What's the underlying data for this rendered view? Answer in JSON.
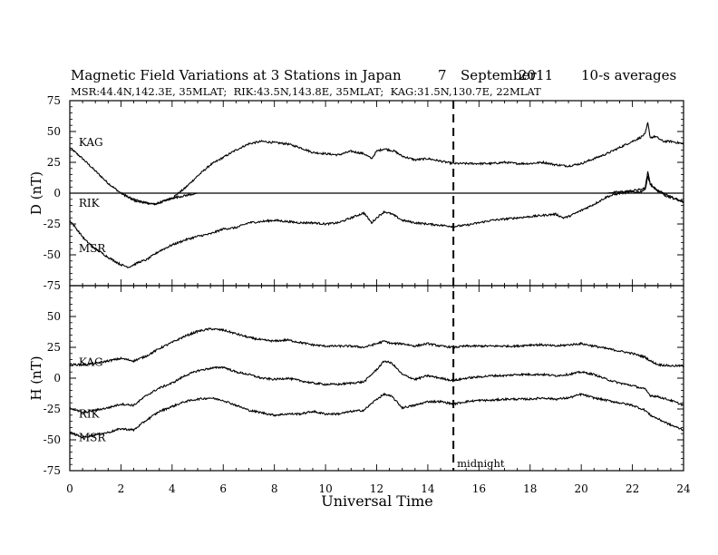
{
  "chart_data": {
    "type": "line",
    "title_parts": {
      "main": "Magnetic Field Variations at 3 Stations in Japan",
      "day": "7",
      "month": "September",
      "year": "2011",
      "averaging": "10-s averages"
    },
    "subtitle": "MSR:44.4N,142.3E, 35MLAT;  RIK:43.5N,143.8E, 35MLAT;  KAG:31.5N,130.7E, 22MLAT",
    "xlabel": "Universal Time",
    "xlim": [
      0,
      24
    ],
    "xticks": [
      0,
      2,
      4,
      6,
      8,
      10,
      12,
      14,
      16,
      18,
      20,
      22,
      24
    ],
    "midnight_marker": {
      "x": 15,
      "label": "midnight"
    },
    "panels": [
      {
        "ylabel": "D (nT)",
        "ylim": [
          -75,
          75
        ],
        "yticks": [
          -75,
          -50,
          -25,
          0,
          25,
          50,
          75
        ],
        "zero_line": true,
        "series": [
          {
            "name": "KAG",
            "label_at": [
              0.35,
              41
            ],
            "x": [
              0,
              0.5,
              1,
              1.5,
              2,
              2.5,
              3,
              3.3,
              3.5,
              4,
              4.5,
              5,
              5.5,
              6,
              6.5,
              7,
              7.5,
              8,
              8.5,
              9,
              9.5,
              10,
              10.5,
              11,
              11.5,
              11.8,
              12,
              12.3,
              12.7,
              13,
              13.5,
              14,
              14.5,
              15,
              15.5,
              16,
              16.5,
              17,
              17.5,
              18,
              18.5,
              19,
              19.5,
              20,
              20.5,
              21,
              21.5,
              22,
              22.3,
              22.5,
              22.6,
              22.7,
              22.9,
              23.2,
              23.5,
              24
            ],
            "y": [
              37,
              28,
              18,
              8,
              0,
              -6,
              -8,
              -9,
              -8,
              -4,
              4,
              14,
              23,
              29,
              35,
              40,
              42,
              41,
              40,
              37,
              33,
              32,
              31,
              34,
              32,
              28,
              34,
              36,
              34,
              30,
              27,
              28,
              26,
              24,
              24,
              24,
              24,
              25,
              24,
              24,
              25,
              23,
              22,
              24,
              28,
              32,
              37,
              42,
              45,
              48,
              57,
              45,
              46,
              42,
              42,
              40
            ]
          },
          {
            "name": "RIK",
            "label_at": [
              0.35,
              -8
            ],
            "x": [
              0,
              0.5,
              1,
              1.5,
              2,
              2.5,
              3,
              3.3,
              4,
              5,
              6,
              7,
              8,
              9,
              10,
              11,
              12,
              13,
              14,
              15,
              16,
              17,
              18,
              19,
              20,
              20.5,
              21,
              21.5,
              22,
              22.3,
              22.5,
              22.6,
              22.7,
              22.9,
              23.3,
              23.7,
              24
            ],
            "y": [
              0,
              0,
              0,
              0,
              0,
              -5,
              -8,
              -9,
              -4,
              0,
              0,
              0,
              0,
              0,
              0,
              0,
              0,
              0,
              0,
              0,
              0,
              0,
              0,
              0,
              0,
              0,
              0,
              1,
              2,
              3,
              4,
              17,
              8,
              3,
              -2,
              -5,
              -7
            ]
          },
          {
            "name": "MSR",
            "label_at": [
              0.35,
              -45
            ],
            "x": [
              0,
              0.3,
              0.6,
              1,
              1.5,
              2,
              2.3,
              2.7,
              3,
              3.5,
              4,
              4.5,
              5,
              5.5,
              6,
              6.5,
              7,
              7.5,
              8,
              8.5,
              9,
              9.5,
              10,
              10.5,
              11,
              11.5,
              11.8,
              12,
              12.3,
              12.6,
              13,
              13.5,
              14,
              14.5,
              15,
              15.5,
              16,
              16.5,
              17,
              17.5,
              18,
              18.5,
              19,
              19.3,
              19.5,
              20,
              20.5,
              21,
              21.5,
              22,
              22.3,
              22.5,
              22.6,
              22.7,
              23,
              23.5,
              24
            ],
            "y": [
              -22,
              -30,
              -38,
              -45,
              -52,
              -58,
              -60,
              -56,
              -54,
              -47,
              -42,
              -38,
              -35,
              -33,
              -29,
              -28,
              -24,
              -23,
              -22,
              -23,
              -24,
              -24,
              -25,
              -24,
              -20,
              -16,
              -24,
              -20,
              -15,
              -17,
              -22,
              -24,
              -25,
              -26,
              -27,
              -26,
              -24,
              -22,
              -21,
              -20,
              -19,
              -18,
              -17,
              -20,
              -19,
              -14,
              -9,
              -3,
              0,
              1,
              1,
              3,
              14,
              7,
              2,
              -3,
              -7
            ]
          }
        ]
      },
      {
        "ylabel": "H (nT)",
        "ylim": [
          -75,
          75
        ],
        "yticks": [
          -75,
          -50,
          -25,
          0,
          25,
          50,
          75
        ],
        "zero_line": false,
        "series": [
          {
            "name": "KAG",
            "label_at": [
              0.35,
              13
            ],
            "x": [
              0,
              0.5,
              1,
              1.5,
              2,
              2.5,
              3,
              3.5,
              4,
              4.5,
              5,
              5.5,
              6,
              6.5,
              7,
              7.5,
              8,
              8.5,
              9,
              9.5,
              10,
              10.5,
              11,
              11.5,
              12,
              12.3,
              12.6,
              13,
              13.5,
              14,
              14.5,
              15,
              15.5,
              16,
              16.5,
              17,
              17.5,
              18,
              18.5,
              19,
              19.5,
              20,
              20.5,
              21,
              21.5,
              22,
              22.5,
              22.7,
              23,
              23.5,
              24
            ],
            "y": [
              11,
              11,
              12,
              14,
              16,
              14,
              18,
              24,
              29,
              34,
              38,
              40,
              39,
              36,
              33,
              31,
              30,
              31,
              29,
              27,
              26,
              26,
              26,
              25,
              28,
              30,
              28,
              28,
              26,
              28,
              26,
              25,
              26,
              26,
              26,
              26,
              26,
              27,
              27,
              26,
              27,
              28,
              26,
              24,
              22,
              20,
              17,
              14,
              11,
              10,
              10
            ]
          },
          {
            "name": "RIK",
            "label_at": [
              0.35,
              -29
            ],
            "x": [
              0,
              0.5,
              1,
              1.5,
              2,
              2.5,
              3,
              3.5,
              4,
              4.5,
              5,
              5.5,
              6,
              6.5,
              7,
              7.5,
              8,
              8.5,
              9,
              9.5,
              10,
              10.5,
              11,
              11.5,
              12,
              12.3,
              12.6,
              13,
              13.5,
              14,
              14.5,
              15,
              15.5,
              16,
              16.5,
              17,
              17.5,
              18,
              18.5,
              19,
              19.5,
              20,
              20.5,
              21,
              21.5,
              22,
              22.5,
              22.7,
              23,
              23.5,
              24
            ],
            "y": [
              -24,
              -28,
              -26,
              -24,
              -21,
              -22,
              -14,
              -8,
              -4,
              2,
              6,
              8,
              9,
              5,
              3,
              0,
              -1,
              0,
              -2,
              -4,
              -5,
              -5,
              -4,
              -3,
              7,
              14,
              12,
              3,
              -1,
              2,
              0,
              -2,
              0,
              1,
              2,
              2,
              3,
              3,
              3,
              2,
              3,
              5,
              3,
              -1,
              -4,
              -6,
              -9,
              -14,
              -15,
              -18,
              -22
            ]
          },
          {
            "name": "MSR",
            "label_at": [
              0.35,
              -48
            ],
            "x": [
              0,
              0.5,
              1,
              1.5,
              2,
              2.5,
              3,
              3.5,
              4,
              4.5,
              5,
              5.5,
              6,
              6.5,
              7,
              7.5,
              8,
              8.5,
              9,
              9.5,
              10,
              10.5,
              11,
              11.5,
              12,
              12.3,
              12.6,
              13,
              13.5,
              14,
              14.5,
              15,
              15.5,
              16,
              16.5,
              17,
              17.5,
              18,
              18.5,
              19,
              19.5,
              20,
              20.5,
              21,
              21.5,
              22,
              22.5,
              22.7,
              23,
              23.5,
              24
            ],
            "y": [
              -44,
              -48,
              -46,
              -44,
              -41,
              -42,
              -34,
              -27,
              -23,
              -19,
              -17,
              -16,
              -18,
              -22,
              -26,
              -28,
              -30,
              -29,
              -29,
              -27,
              -29,
              -29,
              -27,
              -26,
              -17,
              -13,
              -15,
              -24,
              -22,
              -19,
              -19,
              -21,
              -19,
              -18,
              -18,
              -17,
              -17,
              -17,
              -16,
              -17,
              -16,
              -13,
              -16,
              -18,
              -20,
              -22,
              -26,
              -30,
              -33,
              -38,
              -42
            ]
          }
        ]
      }
    ]
  }
}
